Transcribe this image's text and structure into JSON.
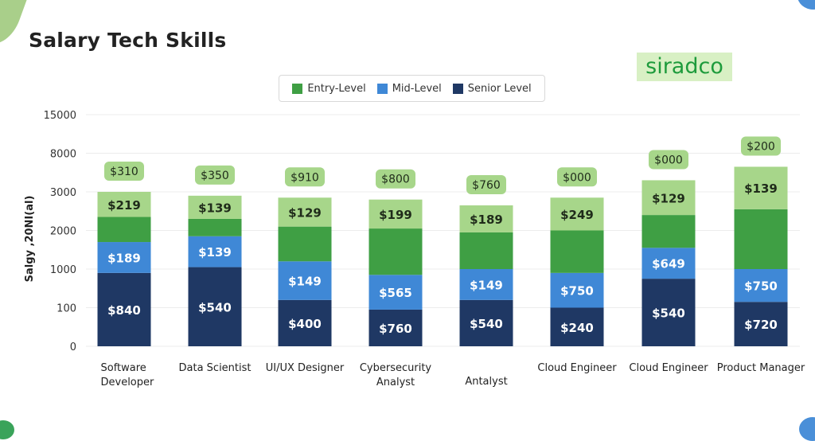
{
  "page_title": "Salary Tech Skills",
  "logo_text": "siradco",
  "chart_data": {
    "type": "bar",
    "stacked": true,
    "title": "Salary Tech Skills",
    "ylabel": "Salgy ,20NI(al)",
    "xlabel": "",
    "y_ticks": [
      "15000",
      "8000",
      "3000",
      "2000",
      "1000",
      "100",
      "0"
    ],
    "legend_position": "top",
    "grid": true,
    "categories": [
      "Software Developer",
      "Data Scientist",
      "UI/UX Designer",
      "Cybersecurity Analyst",
      "Antalyst",
      "Cloud Engineer",
      "Cloud Engineer",
      "Product Manager"
    ],
    "series": [
      {
        "name": "Senior Level",
        "color": "#1f3864",
        "labels": [
          "$840",
          "$540",
          "$400",
          "$760",
          "$540",
          "$240",
          "$540",
          "$720"
        ],
        "tops": [
          1.9,
          2.05,
          1.2,
          0.95,
          1.2,
          1.0,
          1.75,
          1.15
        ]
      },
      {
        "name": "Mid-Level",
        "color": "#3f88d6",
        "labels": [
          "$189",
          "$139",
          "$149",
          "$565",
          "$149",
          "$750",
          "$649",
          "$750"
        ],
        "tops": [
          2.7,
          2.85,
          2.2,
          1.85,
          2.0,
          1.9,
          2.55,
          2.0
        ]
      },
      {
        "name": "Entry-Level",
        "color": "#3f9f44",
        "labels": [
          "",
          "",
          "",
          "",
          "",
          "",
          "",
          ""
        ],
        "tops": [
          3.35,
          3.3,
          3.1,
          3.05,
          2.95,
          3.0,
          3.4,
          3.55
        ]
      },
      {
        "name": "Entry-Level (light)",
        "color": "#a7d68a",
        "labels": [
          "$219",
          "$139",
          "$129",
          "$199",
          "$189",
          "$249",
          "$129",
          "$139"
        ],
        "tops": [
          4.0,
          3.9,
          3.85,
          3.8,
          3.65,
          3.85,
          4.3,
          4.65
        ]
      }
    ],
    "top_labels": [
      "$310",
      "$350",
      "$910",
      "$800",
      "$760",
      "$000",
      "$000",
      "$200"
    ]
  },
  "legend": [
    {
      "label": "Entry-Level",
      "color": "#3f9f44"
    },
    {
      "label": "Mid-Level",
      "color": "#3f88d6"
    },
    {
      "label": "Senior Level",
      "color": "#1f3864"
    }
  ]
}
